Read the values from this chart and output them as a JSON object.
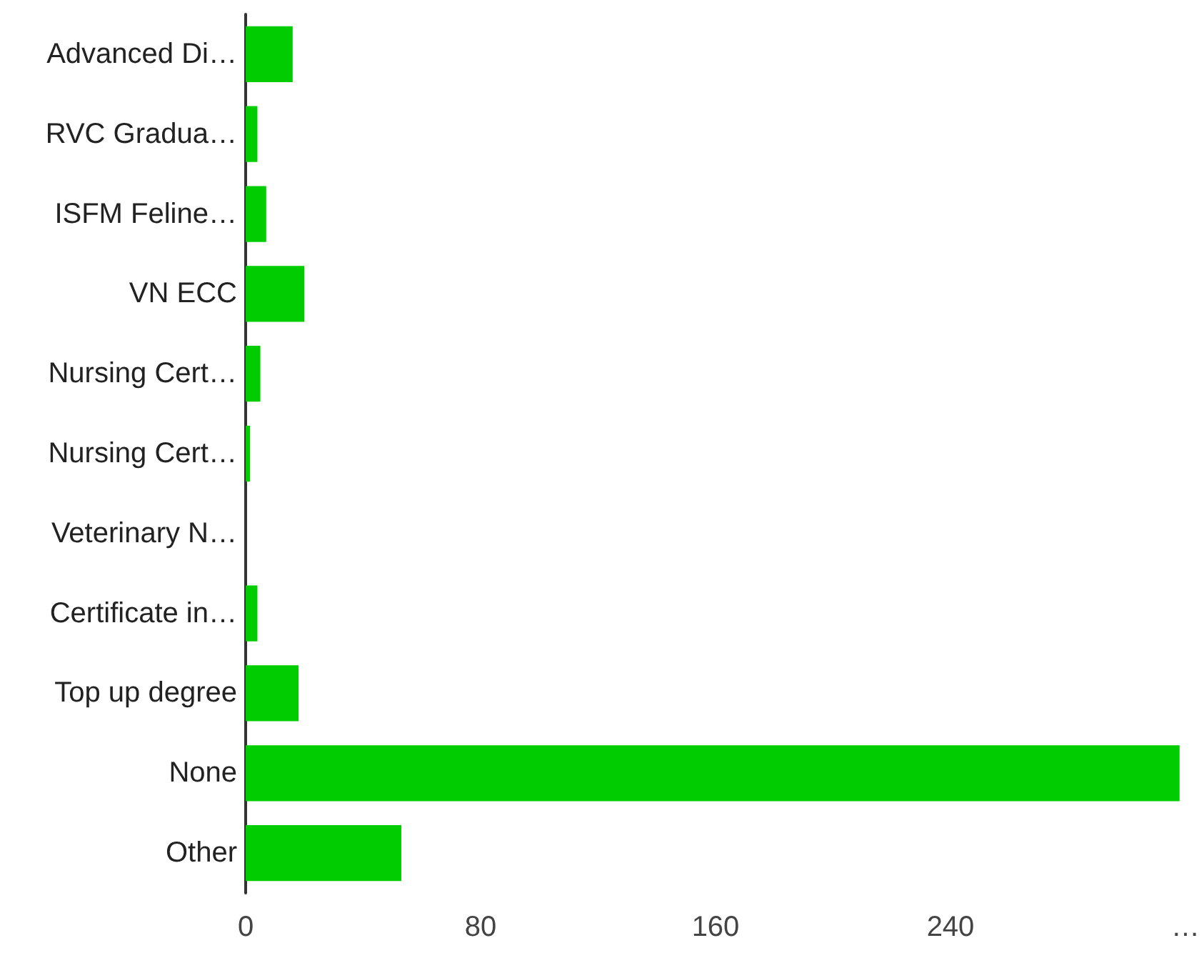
{
  "chart_data": {
    "type": "bar",
    "orientation": "horizontal",
    "categories": [
      "Advanced Di…",
      "RVC Gradua…",
      "ISFM Feline…",
      "VN ECC",
      "Nursing Cert…",
      "Nursing Cert…",
      "Veterinary N…",
      "Certificate in…",
      "Top up degree",
      "None",
      "Other"
    ],
    "values": [
      16,
      4,
      7,
      20,
      5,
      1.5,
      0,
      4,
      18,
      318,
      53
    ],
    "color": "#00cc00",
    "xlim": [
      0,
      320
    ],
    "xticks": [
      0,
      80,
      160,
      240,
      {
        "value": 320,
        "label": "…"
      }
    ],
    "grid": false
  }
}
